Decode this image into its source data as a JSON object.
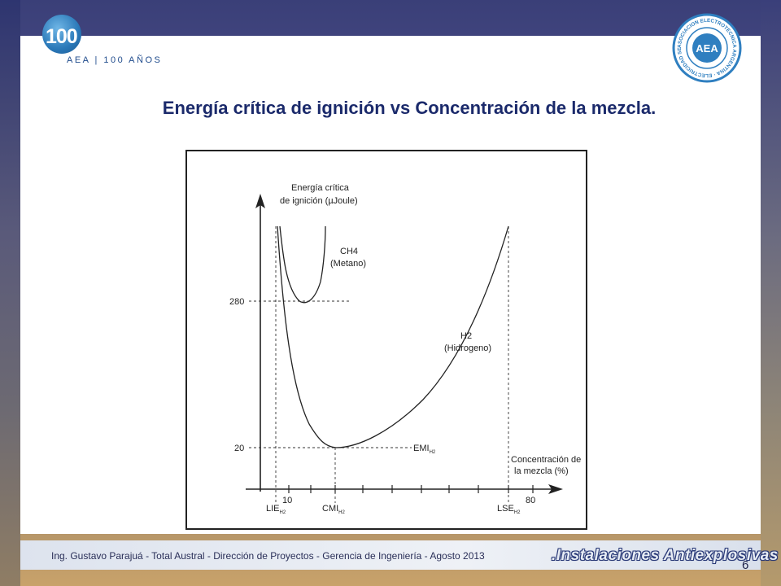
{
  "header": {
    "logo_number": "100",
    "logo_caption": "AEA | 100 AÑOS",
    "seal_center": "AEA",
    "seal_ring_text": "ASOCIACION ELECTROTECNICA ARGENTINA · ELECTRICIDAD SEGURA ·"
  },
  "slide": {
    "title": "Energía crítica de ignición  vs  Concentración de la mezcla."
  },
  "diagram": {
    "y_axis_label_line1": "Energía crítica",
    "y_axis_label_line2": "de ignición (µJoule)",
    "x_axis_label_line1": "Concentración de",
    "x_axis_label_line2": "la mezcla (%)",
    "curve_ch4_line1": "CH4",
    "curve_ch4_line2": "(Metano)",
    "curve_h2_line1": "H2",
    "curve_h2_line2": "(Hidrogeno)",
    "y_tick_high": "280",
    "y_tick_low": "20",
    "x_tick_low": "10",
    "x_tick_high": "80",
    "emi_main": "EMI",
    "emi_sub": "H2",
    "lie_main": "LIE",
    "lie_sub": "H2",
    "cmi_main": "CMI",
    "cmi_sub": "H2",
    "lse_main": "LSE",
    "lse_sub": "H2"
  },
  "footer": {
    "credit": "Ing. Gustavo Parajuá - Total Austral - Dirección de Proyectos - Gerencia de Ingeniería  - Agosto 2013",
    "brand": ".Instalaciones Antiexplosivas",
    "page_number": "6"
  }
}
